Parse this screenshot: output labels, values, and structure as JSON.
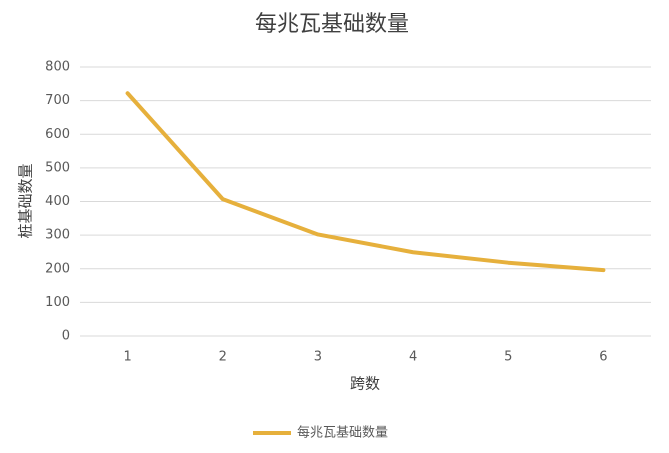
{
  "chart_data": {
    "type": "line",
    "title": "每兆瓦基础数量",
    "x_label": "跨数",
    "y_label": "桩基础数量",
    "categories": [
      "1",
      "2",
      "3",
      "4",
      "5",
      "6"
    ],
    "series": [
      {
        "name": "每兆瓦基础数量",
        "color": "#e6b03c",
        "values": [
          722,
          407,
          302,
          249,
          218,
          196
        ]
      }
    ],
    "ylim": [
      0,
      800
    ],
    "yticks": [
      0,
      100,
      200,
      300,
      400,
      500,
      600,
      700,
      800
    ],
    "grid": true,
    "legend": "bottom"
  }
}
